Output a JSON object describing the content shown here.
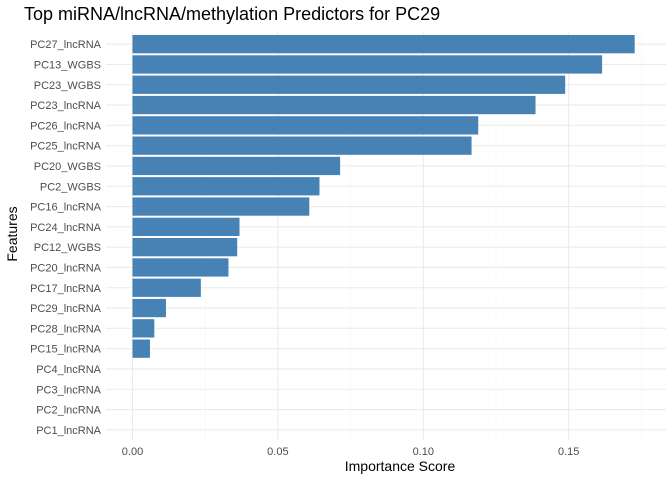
{
  "chart_data": {
    "type": "bar",
    "orientation": "horizontal",
    "title": "Top miRNA/lncRNA/methylation Predictors for PC29",
    "xlabel": "Importance Score",
    "ylabel": "Features",
    "xlim": [
      -0.009,
      0.1775
    ],
    "x_ticks": [
      0.0,
      0.05,
      0.1,
      0.15
    ],
    "x_tick_labels": [
      "0.00",
      "0.05",
      "0.10",
      "0.15"
    ],
    "grid": true,
    "bar_color": "#4682b4",
    "categories": [
      "PC27_lncRNA",
      "PC13_WGBS",
      "PC23_WGBS",
      "PC23_lncRNA",
      "PC26_lncRNA",
      "PC25_lncRNA",
      "PC20_WGBS",
      "PC2_WGBS",
      "PC16_lncRNA",
      "PC24_lncRNA",
      "PC12_WGBS",
      "PC20_lncRNA",
      "PC17_lncRNA",
      "PC29_lncRNA",
      "PC28_lncRNA",
      "PC15_lncRNA",
      "PC4_lncRNA",
      "PC3_lncRNA",
      "PC2_lncRNA",
      "PC1_lncRNA"
    ],
    "values": [
      0.1727,
      0.1615,
      0.1488,
      0.1386,
      0.1189,
      0.1166,
      0.0714,
      0.0643,
      0.0608,
      0.0368,
      0.036,
      0.033,
      0.0235,
      0.0115,
      0.0075,
      0.006,
      0.0,
      0.0,
      0.0,
      0.0
    ]
  }
}
